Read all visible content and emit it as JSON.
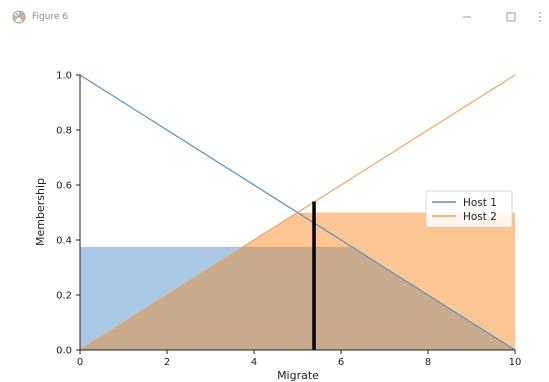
{
  "window": {
    "title": "Figure 6",
    "app_icon": "matplotlib-figure-icon",
    "controls": {
      "minimize_icon": "minimize-icon",
      "maximize_icon": "maximize-icon",
      "more_icon": "more-options-icon"
    }
  },
  "chart_data": {
    "type": "line",
    "title": "",
    "xlabel": "Migrate",
    "ylabel": "Membership",
    "xlim": [
      0,
      10
    ],
    "ylim": [
      0,
      1.0
    ],
    "x_ticks": [
      0,
      2,
      4,
      6,
      8,
      10
    ],
    "x_tick_labels": [
      "0",
      "2",
      "4",
      "6",
      "8",
      "10"
    ],
    "y_ticks": [
      0.0,
      0.2,
      0.4,
      0.6,
      0.8,
      1.0
    ],
    "y_tick_labels": [
      "0.0",
      "0.2",
      "0.4",
      "0.6",
      "0.8",
      "1.0"
    ],
    "grid": false,
    "legend_position": "center-right",
    "series": [
      {
        "name": "Host 1",
        "color": "#5b8fbf",
        "x": [
          0,
          10
        ],
        "y": [
          1.0,
          0.0
        ],
        "activation": 0.375,
        "fill_color": "#a8c8e6"
      },
      {
        "name": "Host 2",
        "color": "#f0a464",
        "x": [
          0,
          10
        ],
        "y": [
          0.0,
          1.0
        ],
        "activation": 0.5,
        "fill_color": "#fcc594"
      }
    ],
    "overlap_color": "#c9aa8c",
    "result_line": {
      "x": 5.38,
      "y": 0.54,
      "color": "#000000"
    }
  }
}
